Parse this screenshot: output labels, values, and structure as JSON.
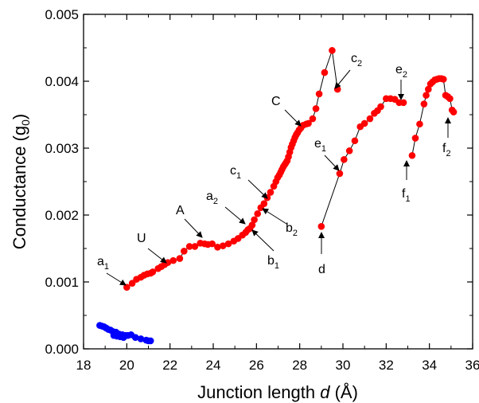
{
  "chart_data": {
    "type": "scatter",
    "xlabel": "Junction length d (Å)",
    "xlabel_parts": [
      "Junction length ",
      "d",
      " (Å)"
    ],
    "ylabel": "Conductance (g0)",
    "ylabel_parts": [
      "Conductance (g",
      "0",
      ")"
    ],
    "xlim": [
      18,
      36
    ],
    "ylim": [
      0.0,
      0.005
    ],
    "xticks": [
      18,
      20,
      22,
      24,
      26,
      28,
      30,
      32,
      34,
      36
    ],
    "yticks": [
      0.0,
      0.001,
      0.002,
      0.003,
      0.004,
      0.005
    ],
    "xtick_labels": [
      "18",
      "20",
      "22",
      "24",
      "26",
      "28",
      "30",
      "32",
      "34",
      "36"
    ],
    "ytick_labels": [
      "0.000",
      "0.001",
      "0.002",
      "0.003",
      "0.004",
      "0.005"
    ],
    "grid": false,
    "colors": {
      "red": "#ff0000",
      "blue": "#0000ff",
      "line": "#000000"
    },
    "series": [
      {
        "color": "#0000ff",
        "points": [
          [
            18.75,
            0.00035
          ],
          [
            18.85,
            0.00034
          ],
          [
            18.95,
            0.00033
          ],
          [
            19.05,
            0.00031
          ],
          [
            19.15,
            0.00029
          ],
          [
            19.25,
            0.00028
          ],
          [
            19.35,
            0.00026
          ],
          [
            19.4,
            0.0002
          ],
          [
            19.5,
            0.00025
          ],
          [
            19.55,
            0.00019
          ],
          [
            19.65,
            0.00022
          ],
          [
            19.7,
            0.00018
          ],
          [
            19.8,
            0.00021
          ],
          [
            19.85,
            0.00017
          ],
          [
            19.95,
            0.0002
          ],
          [
            20.05,
            0.0002
          ],
          [
            20.2,
            0.00021
          ],
          [
            20.4,
            0.00017
          ],
          [
            20.65,
            0.00015
          ],
          [
            20.9,
            0.00013
          ],
          [
            21.0,
            0.00012
          ],
          [
            21.1,
            0.00012
          ]
        ]
      },
      {
        "color": "#ff0000",
        "points": [
          [
            20.0,
            0.00092
          ],
          [
            20.25,
            0.00098
          ],
          [
            20.45,
            0.00104
          ],
          [
            20.65,
            0.00107
          ],
          [
            20.8,
            0.0011
          ],
          [
            20.95,
            0.00112
          ],
          [
            21.1,
            0.00113
          ],
          [
            21.2,
            0.00115
          ],
          [
            21.45,
            0.0012
          ],
          [
            21.6,
            0.00123
          ],
          [
            21.75,
            0.00126
          ],
          [
            21.9,
            0.00129
          ],
          [
            22.15,
            0.00132
          ],
          [
            22.45,
            0.00135
          ],
          [
            22.65,
            0.00146
          ],
          [
            22.9,
            0.00153
          ],
          [
            23.15,
            0.00153
          ],
          [
            23.4,
            0.00158
          ],
          [
            23.6,
            0.00157
          ],
          [
            23.75,
            0.00156
          ],
          [
            23.95,
            0.00157
          ],
          [
            24.2,
            0.00152
          ],
          [
            24.45,
            0.00154
          ],
          [
            24.7,
            0.00157
          ],
          [
            24.95,
            0.00161
          ],
          [
            25.15,
            0.00165
          ],
          [
            25.35,
            0.0017
          ],
          [
            25.5,
            0.00174
          ],
          [
            25.6,
            0.00178
          ],
          [
            25.7,
            0.0018
          ],
          [
            25.8,
            0.00185
          ],
          [
            25.9,
            0.00193
          ],
          [
            26.05,
            0.00202
          ],
          [
            26.2,
            0.00211
          ],
          [
            26.35,
            0.00217
          ],
          [
            26.5,
            0.00226
          ],
          [
            26.65,
            0.00234
          ],
          [
            26.8,
            0.00243
          ],
          [
            26.9,
            0.0025
          ],
          [
            26.98,
            0.00256
          ],
          [
            27.06,
            0.0026
          ],
          [
            27.12,
            0.00264
          ],
          [
            27.18,
            0.00268
          ],
          [
            27.24,
            0.00272
          ],
          [
            27.3,
            0.00275
          ],
          [
            27.36,
            0.00278
          ],
          [
            27.42,
            0.00281
          ],
          [
            27.48,
            0.00287
          ],
          [
            27.54,
            0.00294
          ],
          [
            27.6,
            0.00301
          ],
          [
            27.66,
            0.00306
          ],
          [
            27.72,
            0.00311
          ],
          [
            27.78,
            0.00316
          ],
          [
            27.84,
            0.0032
          ],
          [
            27.9,
            0.00323
          ],
          [
            27.97,
            0.00327
          ],
          [
            28.05,
            0.0033
          ],
          [
            28.15,
            0.00334
          ],
          [
            28.3,
            0.00336
          ],
          [
            28.4,
            0.00337
          ],
          [
            28.6,
            0.00344
          ],
          [
            28.75,
            0.00359
          ],
          [
            28.9,
            0.00381
          ],
          [
            29.15,
            0.00413
          ],
          [
            29.5,
            0.00446
          ],
          [
            29.75,
            0.00388
          ]
        ]
      },
      {
        "color": "#ff0000",
        "points": [
          [
            29.0,
            0.00183
          ],
          [
            29.85,
            0.00262
          ],
          [
            30.05,
            0.00283
          ],
          [
            30.3,
            0.00296
          ],
          [
            30.55,
            0.00311
          ],
          [
            30.8,
            0.00332
          ],
          [
            31.0,
            0.00337
          ],
          [
            31.25,
            0.00344
          ],
          [
            31.45,
            0.00352
          ],
          [
            31.6,
            0.00356
          ],
          [
            31.75,
            0.00362
          ],
          [
            32.0,
            0.00374
          ],
          [
            32.2,
            0.00374
          ],
          [
            32.4,
            0.00373
          ],
          [
            32.6,
            0.00368
          ],
          [
            32.8,
            0.00368
          ]
        ]
      },
      {
        "color": "#ff0000",
        "points": [
          [
            33.2,
            0.00289
          ],
          [
            33.35,
            0.00315
          ],
          [
            33.55,
            0.00336
          ],
          [
            33.75,
            0.00366
          ],
          [
            33.85,
            0.00379
          ],
          [
            33.95,
            0.00388
          ],
          [
            34.05,
            0.00396
          ],
          [
            34.15,
            0.00399
          ],
          [
            34.25,
            0.00402
          ],
          [
            34.35,
            0.00403
          ],
          [
            34.45,
            0.00404
          ],
          [
            34.55,
            0.00404
          ],
          [
            34.65,
            0.00403
          ],
          [
            34.75,
            0.00379
          ],
          [
            34.85,
            0.00377
          ],
          [
            34.95,
            0.00374
          ],
          [
            35.05,
            0.00357
          ],
          [
            35.12,
            0.00354
          ]
        ]
      }
    ],
    "annotations": [
      {
        "base": "a",
        "sub": "1"
      },
      {
        "base": "U",
        "sub": ""
      },
      {
        "base": "A",
        "sub": ""
      },
      {
        "base": "a",
        "sub": "2"
      },
      {
        "base": "b",
        "sub": "1"
      },
      {
        "base": "b",
        "sub": "2"
      },
      {
        "base": "c",
        "sub": "1"
      },
      {
        "base": "C",
        "sub": ""
      },
      {
        "base": "c",
        "sub": "2"
      },
      {
        "base": "d",
        "sub": ""
      },
      {
        "base": "e",
        "sub": "1"
      },
      {
        "base": "e",
        "sub": "2"
      },
      {
        "base": "f",
        "sub": "1"
      },
      {
        "base": "f",
        "sub": "2"
      }
    ]
  }
}
